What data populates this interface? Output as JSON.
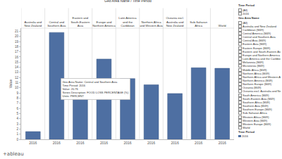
{
  "chart_data": {
    "type": "bar",
    "header_title": "Geo Area Name / Time Period",
    "categories": [
      "Australia and New Zealand",
      "Central and Southern Asia",
      "Eastern and South-Eastern Asia",
      "Europe and Northern America",
      "Latin America and the Caribbean",
      "Northern Africa and Western Asia",
      "Oceania excl. Australia and New Zealand",
      "Sub-Saharan Africa",
      "World"
    ],
    "period_labels": [
      "2016",
      "2016",
      "2016",
      "2016",
      "2016",
      "2016",
      "2016",
      "2016",
      "2016"
    ],
    "values": [
      1.5,
      20.76,
      7.8,
      15.6,
      11.8,
      10.6,
      8.9,
      13.9,
      13.8
    ],
    "color": "#4e6fa2",
    "y_label": "Value",
    "ylim": [
      0,
      21.6
    ],
    "yticks": [
      0,
      1,
      2,
      3,
      4,
      5,
      6,
      7,
      8,
      9,
      10,
      11,
      12,
      13,
      14,
      15,
      16,
      17,
      18,
      19,
      20,
      21
    ],
    "grid": false,
    "tooltip": {
      "at": "Central and Southern Asia",
      "lines": [
        "Geo Area Name: Central and Southern Asia",
        "Time Period: 2016",
        "Value: 20.76",
        "Series Description: FOOD LOSS PERCENTAGE (%)",
        "Units: PERCENT"
      ]
    }
  },
  "filters": [
    {
      "title": "Time Period",
      "items": [
        "(All)",
        "2016"
      ]
    },
    {
      "title": "Geo Area Name",
      "items": [
        "(All)",
        "Australia and New Zealand",
        "Caribbean (M49)",
        "Central America (M49)",
        "Central and Southern Asia",
        "Central Asia (M49)",
        "Eastern Asia (M49)",
        "Eastern Europe (M49)",
        "Eastern and South-Eastern Asia",
        "Europe and Northern America",
        "Latin America and the Caribbean",
        "Melanesia (M49)",
        "Micronesia (M49)",
        "Middle Africa (M49)",
        "Northern Africa (M49)",
        "Northern Africa and Western Asia",
        "Northern America (M49)",
        "Northern Europe (M49)",
        "Oceania (M49)",
        "Oceania excl. Australia and New Zealand",
        "South America (M49)",
        "South-Eastern Asia (M49)",
        "Southern Africa (M49)",
        "Southern Asia (M49)",
        "Southern Europe (M49)",
        "Sub-Saharan Africa",
        "Western Africa (M49)",
        "Western Asia (M49)",
        "Western Europe (M49)",
        "World"
      ]
    }
  ],
  "legend": {
    "title": "Time Period",
    "items": [
      "2016"
    ]
  },
  "footer": "+ableau"
}
